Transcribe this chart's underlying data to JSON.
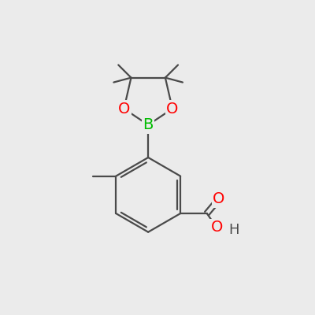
{
  "background_color": "#ebebeb",
  "bond_color": "#4a4a4a",
  "bond_width": 1.6,
  "atom_colors": {
    "B": "#00bb00",
    "O": "#ff0000",
    "C": "#4a4a4a",
    "H": "#4a4a4a"
  },
  "font_size_atom": 14,
  "font_size_OH": 13
}
